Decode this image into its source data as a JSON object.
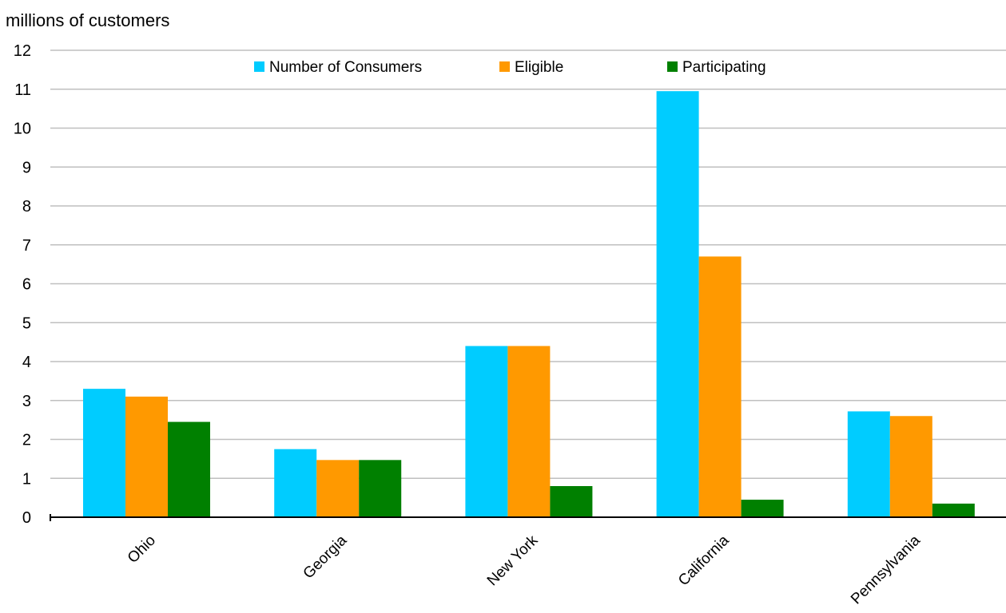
{
  "chart_data": {
    "type": "bar",
    "title": "",
    "ylabel": "millions of customers",
    "xlabel": "",
    "ylim": [
      0,
      12
    ],
    "yticks": [
      0,
      1,
      2,
      3,
      4,
      5,
      6,
      7,
      8,
      9,
      10,
      11,
      12
    ],
    "grid": true,
    "legend_position": "top-center",
    "categories": [
      "Ohio",
      "Georgia",
      "New York",
      "California",
      "Pennsylvania"
    ],
    "series": [
      {
        "name": "Number of Consumers",
        "color": "#00CCFF",
        "values": [
          3.3,
          1.75,
          4.4,
          10.95,
          2.72
        ]
      },
      {
        "name": "Eligible",
        "color": "#FF9900",
        "values": [
          3.1,
          1.47,
          4.4,
          6.7,
          2.6
        ]
      },
      {
        "name": "Participating",
        "color": "#008000",
        "values": [
          2.45,
          1.47,
          0.8,
          0.45,
          0.35
        ]
      }
    ]
  }
}
